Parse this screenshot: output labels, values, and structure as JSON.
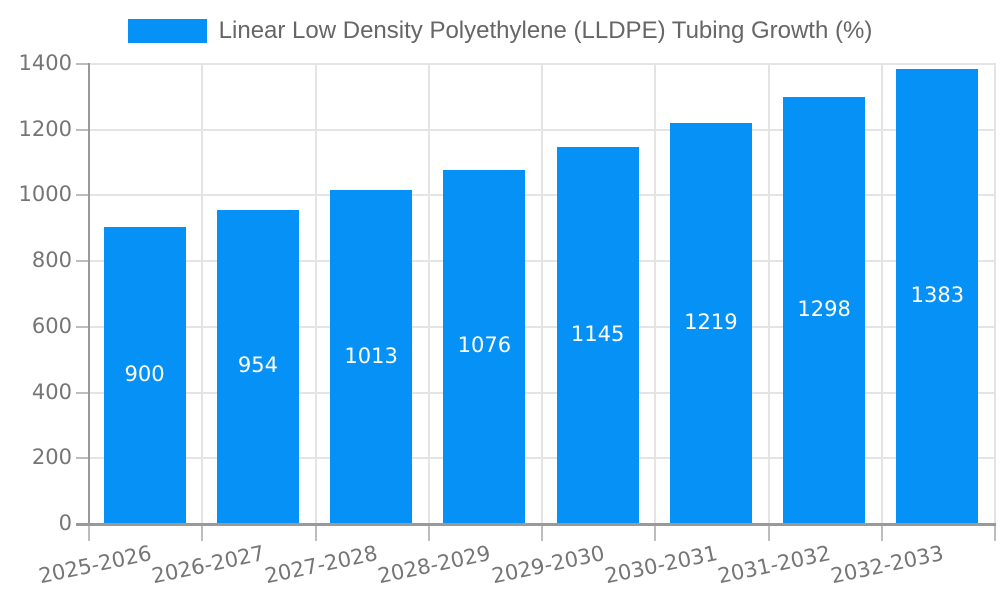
{
  "chart_data": {
    "type": "bar",
    "title": "Linear Low Density Polyethylene (LLDPE) Tubing Growth (%)",
    "categories": [
      "2025-2026",
      "2026-2027",
      "2027-2028",
      "2028-2029",
      "2029-2030",
      "2030-2031",
      "2031-2032",
      "2032-2033"
    ],
    "values": [
      900,
      954,
      1013,
      1076,
      1145,
      1219,
      1298,
      1383
    ],
    "xlabel": "",
    "ylabel": "",
    "ylim": [
      0,
      1400
    ],
    "yticks": [
      0,
      200,
      400,
      600,
      800,
      1000,
      1200,
      1400
    ],
    "grid": true,
    "legend_position": "top-center",
    "value_labels": "inside-center",
    "colors": {
      "bar": "#0591f5",
      "value_label": "#ffffff",
      "axis_text": "#757575",
      "title_text": "#666666",
      "grid": "#e4e4e4",
      "axis_line": "#999999",
      "tick": "#bdbdbd",
      "background": "#ffffff"
    }
  }
}
